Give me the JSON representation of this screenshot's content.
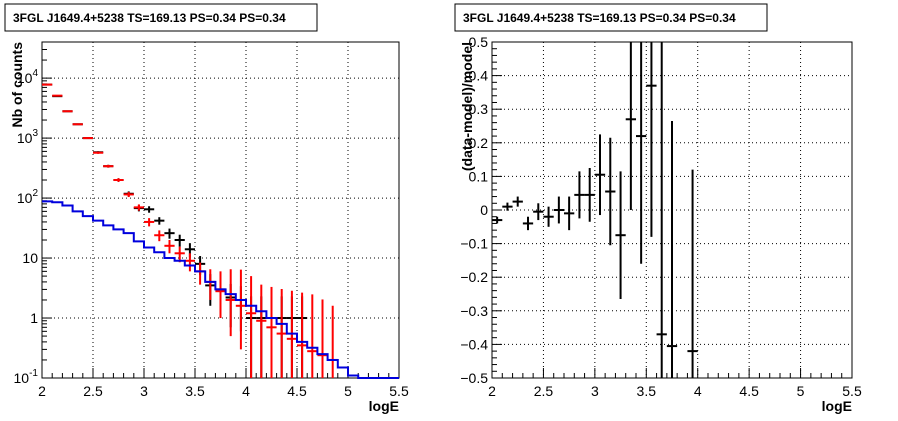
{
  "chart_data": [
    {
      "type": "histogram",
      "title": "3FGL J1649.4+5238 TS=169.13 PS=0.34 PS=0.34",
      "xlabel": "logE",
      "ylabel": "Nb of counts",
      "xlim": [
        2,
        5.5
      ],
      "ylim": [
        0.1,
        40000
      ],
      "yscale": "log",
      "grid": true,
      "xticks": [
        2,
        2.5,
        3,
        3.5,
        4,
        4.5,
        5,
        5.5
      ],
      "xtick_labels": [
        "2",
        "2.5",
        "3",
        "3.5",
        "4",
        "4.5",
        "5",
        "5.5"
      ],
      "yticks": [
        0.1,
        1,
        10,
        100,
        1000,
        10000
      ],
      "ytick_labels": [
        {
          "base": "10",
          "exp": "-1"
        },
        {
          "base": "1",
          "exp": ""
        },
        {
          "base": "10",
          "exp": ""
        },
        {
          "base": "10",
          "exp": "2"
        },
        {
          "base": "10",
          "exp": "3"
        },
        {
          "base": "10",
          "exp": "4"
        }
      ],
      "series": [
        {
          "color": "#000000",
          "style": "errorbar",
          "bin_width": 0.1,
          "x": [
            2.05,
            2.15,
            2.25,
            2.35,
            2.45,
            2.55,
            2.65,
            2.75,
            2.85,
            2.95,
            3.05,
            3.15,
            3.25,
            3.35,
            3.45,
            3.55,
            3.65,
            3.75,
            3.85,
            3.95,
            4.05,
            4.15,
            4.25,
            4.35,
            4.45,
            4.55
          ],
          "y": [
            7800,
            5000,
            2800,
            1700,
            1000,
            580,
            340,
            200,
            118,
            68,
            65,
            42,
            26,
            20,
            14,
            8,
            3.5,
            3.0,
            2.2,
            2.0,
            1.0,
            1.0,
            1.0,
            1.0,
            1.0,
            1.0
          ],
          "yerr_low": [
            88,
            70,
            53,
            41,
            31,
            24,
            18,
            14,
            11,
            8,
            8,
            6,
            5,
            4.5,
            3.7,
            2.8,
            1.9,
            1.7,
            1.5,
            1.4,
            1.0,
            1.0,
            1.0,
            1.0,
            1.0,
            1.0
          ],
          "yerr_high": [
            88,
            70,
            53,
            41,
            31,
            24,
            18,
            14,
            11,
            8,
            8,
            6,
            5,
            4.5,
            3.7,
            2.8,
            1.9,
            1.7,
            1.5,
            1.4,
            1.3,
            1.3,
            1.3,
            1.3,
            1.3,
            1.3
          ]
        },
        {
          "color": "#ff0000",
          "style": "errorbar",
          "bin_width": 0.1,
          "x": [
            2.05,
            2.15,
            2.25,
            2.35,
            2.45,
            2.55,
            2.65,
            2.75,
            2.85,
            2.95,
            3.05,
            3.15,
            3.25,
            3.35,
            3.45,
            3.55,
            3.65,
            3.75,
            3.85,
            3.95,
            4.05,
            4.15,
            4.25,
            4.35,
            4.45,
            4.55,
            4.65,
            4.75,
            4.85
          ],
          "y": [
            7800,
            5100,
            2800,
            1700,
            1000,
            570,
            340,
            200,
            115,
            70,
            40,
            24,
            16,
            12,
            9,
            6,
            4,
            2.8,
            2.0,
            1.6,
            1.2,
            0.9,
            0.7,
            0.55,
            0.45,
            0.35,
            0.28,
            0.24,
            0.2
          ],
          "yerr_low": [
            88,
            71,
            53,
            41,
            31,
            24,
            18,
            14,
            11,
            8.4,
            6.3,
            4.9,
            4,
            3.5,
            3,
            2.4,
            2,
            1.8,
            1.5,
            1.3,
            1.15,
            0.85,
            0.65,
            0.5,
            0.4,
            0.3,
            0.24,
            0.2,
            0.17
          ],
          "yerr_high": [
            88,
            71,
            53,
            41,
            31,
            24,
            18,
            14,
            11,
            8.4,
            6.3,
            4.9,
            4,
            3.5,
            3,
            2.4,
            2.5,
            3.2,
            4.5,
            4.8,
            3.8,
            2.7,
            2.6,
            2.5,
            2.4,
            2.3,
            2.2,
            1.8,
            1.4
          ]
        },
        {
          "color": "#0000dd",
          "style": "step",
          "bin_edges": [
            2.0,
            2.1,
            2.2,
            2.3,
            2.4,
            2.5,
            2.6,
            2.7,
            2.8,
            2.9,
            3.0,
            3.1,
            3.2,
            3.3,
            3.4,
            3.5,
            3.6,
            3.7,
            3.8,
            3.9,
            4.0,
            4.1,
            4.2,
            4.3,
            4.4,
            4.5,
            4.6,
            4.7,
            4.8,
            4.9,
            5.0,
            5.1,
            5.2,
            5.3,
            5.4,
            5.5
          ],
          "values": [
            88,
            85,
            75,
            60,
            50,
            42,
            35,
            30,
            26,
            19,
            15,
            12.5,
            10,
            9,
            7.5,
            6,
            4,
            3,
            2.5,
            2,
            1.6,
            1.3,
            1.0,
            0.8,
            0.55,
            0.4,
            0.32,
            0.25,
            0.2,
            0.15,
            0.11,
            0.1,
            0.1,
            0.1,
            0.1
          ]
        }
      ]
    },
    {
      "type": "errorbar",
      "title": "3FGL J1649.4+5238 TS=169.13 PS=0.34 PS=0.34",
      "xlabel": "logE",
      "ylabel": "(data-model)/model",
      "xlim": [
        2,
        5.5
      ],
      "ylim": [
        -0.5,
        0.5
      ],
      "grid": true,
      "xticks": [
        2,
        2.5,
        3,
        3.5,
        4,
        4.5,
        5,
        5.5
      ],
      "xtick_labels": [
        "2",
        "2.5",
        "3",
        "3.5",
        "4",
        "4.5",
        "5",
        "5.5"
      ],
      "yticks": [
        -0.5,
        -0.4,
        -0.3,
        -0.2,
        -0.1,
        0,
        0.1,
        0.2,
        0.3,
        0.4,
        0.5
      ],
      "ytick_labels": [
        "−0.5",
        "−0.4",
        "−0.3",
        "−0.2",
        "−0.1",
        "0",
        "0.1",
        "0.2",
        "0.3",
        "0.4",
        "0.5"
      ],
      "series": [
        {
          "color": "#000000",
          "bin_width": 0.1,
          "x": [
            2.05,
            2.15,
            2.25,
            2.35,
            2.45,
            2.55,
            2.65,
            2.75,
            2.85,
            2.95,
            3.05,
            3.15,
            3.25,
            3.35,
            3.45,
            3.55,
            3.65,
            3.75,
            3.95
          ],
          "y": [
            -0.03,
            0.01,
            0.025,
            -0.04,
            -0.005,
            -0.02,
            0.0,
            -0.01,
            0.045,
            0.045,
            0.105,
            0.055,
            -0.075,
            0.27,
            0.22,
            0.37,
            -0.37,
            -0.405,
            -0.42
          ],
          "yerr_low": [
            0.01,
            0.012,
            0.015,
            0.02,
            0.025,
            0.03,
            0.04,
            0.05,
            0.07,
            0.08,
            0.12,
            0.16,
            0.19,
            0.27,
            0.38,
            0.45,
            0.13,
            0.1,
            0.08
          ],
          "yerr_high": [
            0.01,
            0.012,
            0.015,
            0.02,
            0.025,
            0.03,
            0.04,
            0.05,
            0.07,
            0.08,
            0.12,
            0.16,
            0.19,
            0.3,
            0.33,
            0.13,
            0.87,
            0.67,
            0.54
          ]
        }
      ]
    }
  ]
}
